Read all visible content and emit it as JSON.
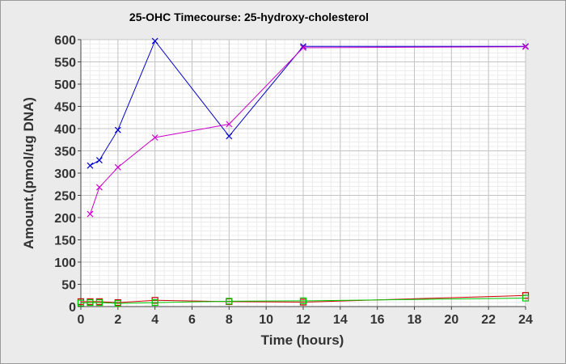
{
  "chart_data": {
    "type": "line",
    "title": "25-OHC Timecourse: 25-hydroxy-cholesterol",
    "xlabel": "Time (hours)",
    "ylabel": "Amount.(pmol/ug DNA)",
    "xlim": [
      0,
      24
    ],
    "ylim": [
      0,
      600
    ],
    "xticks": [
      0,
      2,
      4,
      6,
      8,
      10,
      12,
      14,
      16,
      18,
      20,
      22,
      24
    ],
    "yticks": [
      0,
      50,
      100,
      150,
      200,
      250,
      300,
      350,
      400,
      450,
      500,
      550,
      600
    ],
    "grid": true,
    "legend": "none",
    "series": [
      {
        "color": "#0000cc",
        "marker": "x",
        "x": [
          0.5,
          1,
          2,
          4,
          8,
          12,
          24
        ],
        "y": [
          317,
          329,
          397,
          597,
          383,
          585,
          585
        ]
      },
      {
        "color": "#cc00cc",
        "marker": "x",
        "x": [
          0.5,
          1,
          2,
          4,
          8,
          12,
          24
        ],
        "y": [
          208,
          268,
          313,
          380,
          410,
          582,
          584
        ]
      },
      {
        "color": "#cc0000",
        "marker": "square",
        "x": [
          0,
          0.5,
          1,
          2,
          4,
          8,
          12,
          24
        ],
        "y": [
          11,
          11,
          11,
          9,
          14,
          11,
          10,
          25
        ]
      },
      {
        "color": "#00cc00",
        "marker": "square",
        "x": [
          0,
          0.5,
          1,
          2,
          4,
          8,
          12,
          24
        ],
        "y": [
          8,
          9,
          9,
          7,
          9,
          12,
          13,
          19
        ]
      }
    ]
  }
}
